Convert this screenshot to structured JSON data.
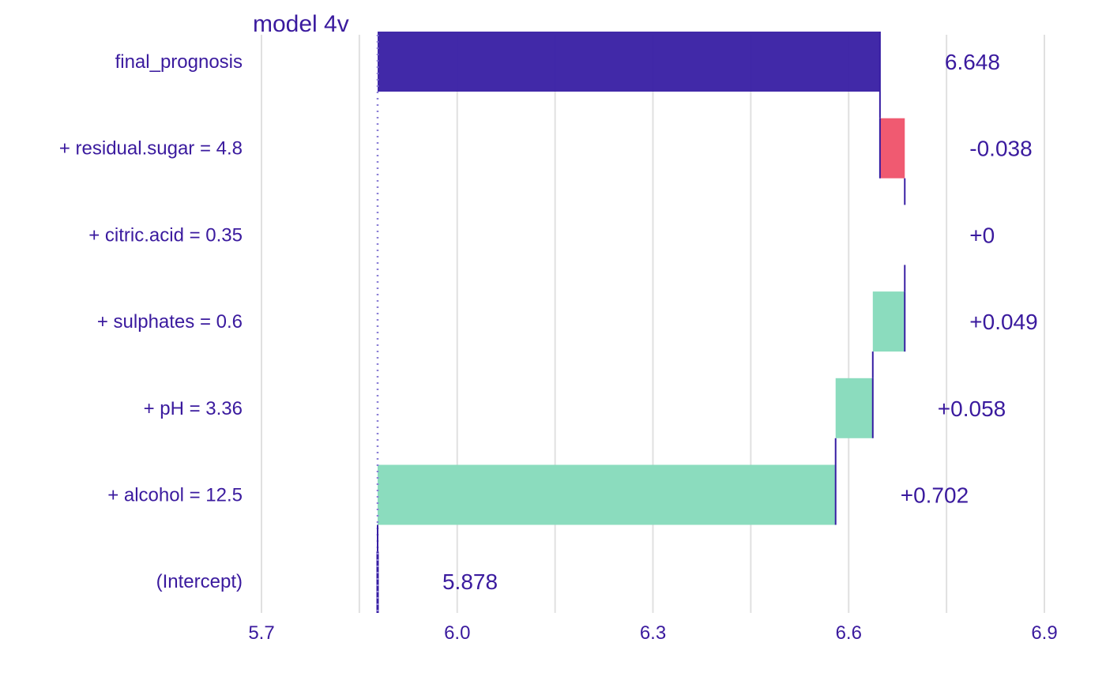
{
  "chart_data": {
    "type": "bar",
    "subtype": "break-down waterfall",
    "title": "model  4v",
    "intercept": 5.878,
    "rows": [
      {
        "label": "final_prognosis",
        "start": 5.878,
        "end": 6.648,
        "value_label": "6.648",
        "kind": "prediction"
      },
      {
        "label": "+ residual.sugar = 4.8",
        "start": 6.686,
        "end": 6.648,
        "value_label": "-0.038",
        "kind": "negative"
      },
      {
        "label": "+ citric.acid = 0.35",
        "start": 6.686,
        "end": 6.686,
        "value_label": "+0",
        "kind": "zero"
      },
      {
        "label": "+ sulphates = 0.6",
        "start": 6.637,
        "end": 6.686,
        "value_label": "+0.049",
        "kind": "positive"
      },
      {
        "label": "+ pH = 3.36",
        "start": 6.58,
        "end": 6.637,
        "value_label": "+0.058",
        "kind": "positive"
      },
      {
        "label": "+ alcohol = 12.5",
        "start": 5.878,
        "end": 6.58,
        "value_label": "+0.702",
        "kind": "positive"
      },
      {
        "label": "(Intercept)",
        "start": 5.878,
        "end": 5.878,
        "value_label": "5.878",
        "kind": "intercept"
      }
    ],
    "xticks": [
      {
        "value": 5.7,
        "label": "5.7"
      },
      {
        "value": 6.0,
        "label": "6.0"
      },
      {
        "value": 6.3,
        "label": "6.3"
      },
      {
        "value": 6.6,
        "label": "6.6"
      },
      {
        "value": 6.9,
        "label": "6.9"
      }
    ],
    "xlim": [
      5.7,
      6.9
    ],
    "grid": true,
    "legend": "none",
    "colors": {
      "prediction": "#371ea3",
      "positive": "#8bdcbe",
      "negative": "#f05a71",
      "connector": "#371ea3",
      "text": "#3a1a9e",
      "baseline": "#8b7fd6",
      "grid": "#e0e0e0"
    }
  }
}
